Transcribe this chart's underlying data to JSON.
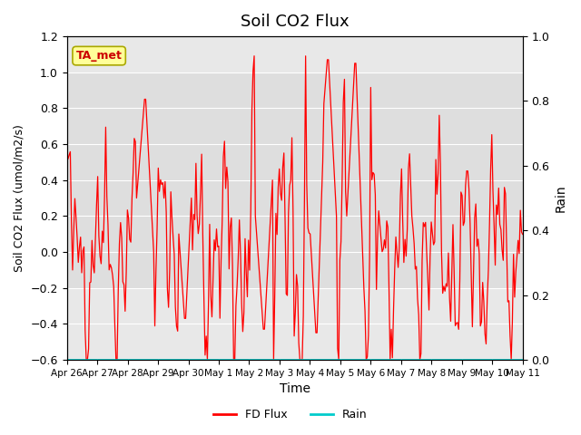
{
  "title": "Soil CO2 Flux",
  "xlabel": "Time",
  "ylabel": "Soil CO2 Flux (umol/m2/s)",
  "ylabel_right": "Rain",
  "ylim_left": [
    -0.6,
    1.2
  ],
  "ylim_right": [
    0.0,
    1.0
  ],
  "yticks_left": [
    -0.6,
    -0.4,
    -0.2,
    0.0,
    0.2,
    0.4,
    0.6,
    0.8,
    1.0,
    1.2
  ],
  "yticks_right": [
    0.0,
    0.2,
    0.4,
    0.6,
    0.8,
    1.0
  ],
  "x_tick_labels": [
    "Apr 26",
    "Apr 27",
    "Apr 28",
    "Apr 29",
    "Apr 30",
    "May 1",
    "May 2",
    "May 3",
    "May 4",
    "May 5",
    "May 6",
    "May 7",
    "May 8",
    "May 9",
    "May 10",
    "May 11"
  ],
  "background_color": "#ffffff",
  "plot_bg_color": "#e8e8e8",
  "band_color_light": "#d8d8d8",
  "fd_flux_color": "#ff0000",
  "rain_color": "#00cccc",
  "ta_met_text": "TA_met",
  "ta_met_bg": "#ffff99",
  "ta_met_border": "#aaa800"
}
